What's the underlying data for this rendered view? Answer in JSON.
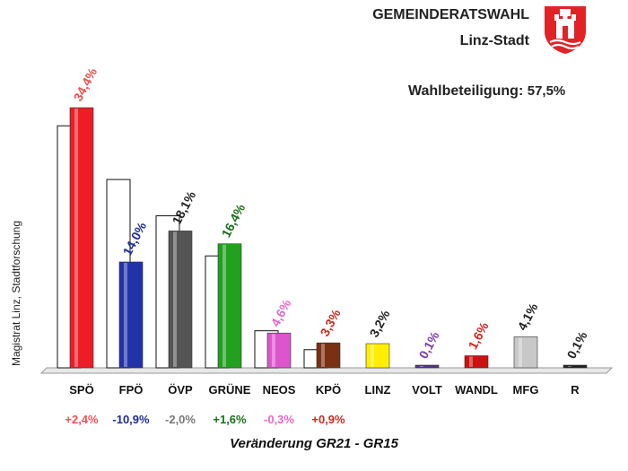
{
  "header": {
    "title": "GEMEINDERATSWAHL",
    "subtitle": "Linz-Stadt",
    "turnout_label": "Wahlbeteiligung:",
    "turnout_value": "57,5%",
    "source": "Magistrat Linz, Stadtforschung",
    "footer": "Veränderung  GR21 - GR15"
  },
  "logo": {
    "name": "linz-coat-of-arms",
    "colors": [
      "#e32226",
      "#ffffff"
    ]
  },
  "chart_data": {
    "type": "bar",
    "title": "GEMEINDERATSWAHL",
    "categories": [
      "SPÖ",
      "FPÖ",
      "ÖVP",
      "GRÜNE",
      "NEOS",
      "KPÖ",
      "LINZ",
      "VOLT",
      "WANDL",
      "MFG",
      "R"
    ],
    "series": [
      {
        "values": [
          34.4,
          14.0,
          18.1,
          16.4,
          4.6,
          3.3,
          3.2,
          0.1,
          1.6,
          4.1,
          0.1
        ]
      },
      {
        "values": [
          32.0,
          24.9,
          20.1,
          14.8,
          4.9,
          2.4,
          null,
          null,
          null,
          null,
          null
        ]
      }
    ],
    "value_labels": [
      "34,4%",
      "14,0%",
      "18,1%",
      "16,4%",
      "4,6%",
      "3,3%",
      "3,2%",
      "0,1%",
      "1,6%",
      "4,1%",
      "0,1%"
    ],
    "changes": [
      "+2,4%",
      "-10,9%",
      "-2,0%",
      "+1,6%",
      "-0,3%",
      "+0,9%",
      "",
      "",
      "",
      "",
      ""
    ],
    "colors": [
      "#ee1c25",
      "#2233aa",
      "#555555",
      "#22a11e",
      "#dd55cc",
      "#7a3012",
      "#ffee00",
      "#553388",
      "#cc1111",
      "#c8c8c8",
      "#222222"
    ],
    "label_colors": [
      "#f05050",
      "#1e2c96",
      "#222222",
      "#1a6e1a",
      "#e868c8",
      "#cc2a20",
      "#222222",
      "#7a3fa8",
      "#e01e1e",
      "#222222",
      "#222222"
    ],
    "change_colors": [
      "#f05050",
      "#1e2c96",
      "#777777",
      "#1a6e1a",
      "#e868c8",
      "#cc2a20",
      "#222222",
      "#222222",
      "#222222",
      "#222222",
      "#222222"
    ],
    "ylim": [
      0,
      40
    ]
  }
}
